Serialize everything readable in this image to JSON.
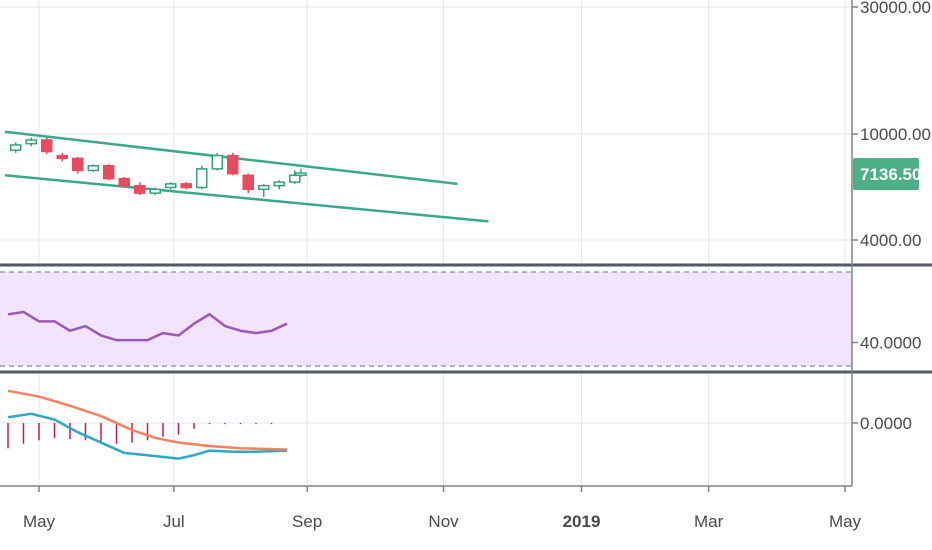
{
  "chart_data": {
    "type": "candlestick",
    "panes": {
      "price": {
        "scale": "log",
        "y_ticks": [
          "30000.00",
          "10000.00",
          "4000.00"
        ],
        "last_price": "7136.50",
        "last_price_color": "#4caf87",
        "up_color": "#ffffff",
        "up_border": "#3aa17e",
        "down_color": "#e84a5f",
        "trendline_color": "#3aa88c",
        "candles": [
          {
            "t": 0.5,
            "o": 8700,
            "h": 9300,
            "l": 8500,
            "c": 9100
          },
          {
            "t": 1.5,
            "o": 9200,
            "h": 9700,
            "l": 9000,
            "c": 9500
          },
          {
            "t": 2.5,
            "o": 9500,
            "h": 9700,
            "l": 8400,
            "c": 8600
          },
          {
            "t": 3.5,
            "o": 8300,
            "h": 8500,
            "l": 7900,
            "c": 8100
          },
          {
            "t": 4.5,
            "o": 8100,
            "h": 8200,
            "l": 7100,
            "c": 7300
          },
          {
            "t": 5.5,
            "o": 7300,
            "h": 7700,
            "l": 7200,
            "c": 7600
          },
          {
            "t": 6.5,
            "o": 7600,
            "h": 7700,
            "l": 6700,
            "c": 6800
          },
          {
            "t": 7.5,
            "o": 6800,
            "h": 6900,
            "l": 6300,
            "c": 6400
          },
          {
            "t": 8.5,
            "o": 6400,
            "h": 6600,
            "l": 5900,
            "c": 6000
          },
          {
            "t": 9.5,
            "o": 6000,
            "h": 6300,
            "l": 5900,
            "c": 6200
          },
          {
            "t": 10.5,
            "o": 6300,
            "h": 6600,
            "l": 6200,
            "c": 6500
          },
          {
            "t": 11.5,
            "o": 6500,
            "h": 6600,
            "l": 6200,
            "c": 6300
          },
          {
            "t": 12.5,
            "o": 6300,
            "h": 7600,
            "l": 6200,
            "c": 7400
          },
          {
            "t": 13.5,
            "o": 7400,
            "h": 8500,
            "l": 7300,
            "c": 8300
          },
          {
            "t": 14.5,
            "o": 8300,
            "h": 8500,
            "l": 7000,
            "c": 7100
          },
          {
            "t": 15.5,
            "o": 7000,
            "h": 7100,
            "l": 6000,
            "c": 6200
          },
          {
            "t": 16.5,
            "o": 6200,
            "h": 6500,
            "l": 5800,
            "c": 6400
          },
          {
            "t": 17.5,
            "o": 6400,
            "h": 6700,
            "l": 6200,
            "c": 6600
          },
          {
            "t": 18.5,
            "o": 6600,
            "h": 7300,
            "l": 6500,
            "c": 7000
          },
          {
            "t": 18.9,
            "o": 7000,
            "h": 7400,
            "l": 6900,
            "c": 7136.5
          }
        ],
        "trendlines": [
          {
            "t1": -0.2,
            "v1": 10200,
            "t2": 29,
            "v2": 6500
          },
          {
            "t1": -0.2,
            "v1": 7000,
            "t2": 31,
            "v2": 4700
          }
        ]
      },
      "rsi": {
        "y_tick": "40.0000",
        "band_upper": 70,
        "band_lower": 30,
        "band_color": "#f3e3ff",
        "line_color": "#9b59b6",
        "values": [
          {
            "t": 0,
            "v": 52
          },
          {
            "t": 1,
            "v": 53
          },
          {
            "t": 2,
            "v": 49
          },
          {
            "t": 3,
            "v": 49
          },
          {
            "t": 4,
            "v": 45
          },
          {
            "t": 5,
            "v": 47
          },
          {
            "t": 6,
            "v": 43
          },
          {
            "t": 7,
            "v": 41
          },
          {
            "t": 8,
            "v": 41
          },
          {
            "t": 9,
            "v": 41
          },
          {
            "t": 10,
            "v": 44
          },
          {
            "t": 11,
            "v": 43
          },
          {
            "t": 12,
            "v": 48
          },
          {
            "t": 13,
            "v": 52
          },
          {
            "t": 14,
            "v": 47
          },
          {
            "t": 15,
            "v": 45
          },
          {
            "t": 16,
            "v": 44
          },
          {
            "t": 17,
            "v": 45
          },
          {
            "t": 18,
            "v": 48
          }
        ]
      },
      "macd": {
        "y_tick": "0.0000",
        "macd_color": "#2ea8c3",
        "signal_color": "#f4825e",
        "hist_color": "#c2185b",
        "macd_line": [
          {
            "t": 0,
            "v": 5
          },
          {
            "t": 1.5,
            "v": 8
          },
          {
            "t": 3,
            "v": 3
          },
          {
            "t": 4.5,
            "v": -8
          },
          {
            "t": 6,
            "v": -17
          },
          {
            "t": 7.5,
            "v": -26
          },
          {
            "t": 9,
            "v": -28
          },
          {
            "t": 11,
            "v": -31
          },
          {
            "t": 12,
            "v": -28
          },
          {
            "t": 13,
            "v": -24
          },
          {
            "t": 14.5,
            "v": -25
          },
          {
            "t": 16,
            "v": -25
          },
          {
            "t": 18,
            "v": -24
          }
        ],
        "signal_line": [
          {
            "t": 0,
            "v": 28
          },
          {
            "t": 2,
            "v": 23
          },
          {
            "t": 4,
            "v": 15
          },
          {
            "t": 6,
            "v": 6
          },
          {
            "t": 8,
            "v": -6
          },
          {
            "t": 9.5,
            "v": -13
          },
          {
            "t": 11,
            "v": -17
          },
          {
            "t": 13,
            "v": -20
          },
          {
            "t": 15,
            "v": -22
          },
          {
            "t": 18,
            "v": -23
          }
        ],
        "histogram": [
          {
            "t": 0,
            "v": -22
          },
          {
            "t": 1,
            "v": -18
          },
          {
            "t": 2,
            "v": -15
          },
          {
            "t": 3,
            "v": -13
          },
          {
            "t": 4,
            "v": -14
          },
          {
            "t": 5,
            "v": -15
          },
          {
            "t": 6,
            "v": -17
          },
          {
            "t": 7,
            "v": -18
          },
          {
            "t": 8,
            "v": -17
          },
          {
            "t": 9,
            "v": -15
          },
          {
            "t": 10,
            "v": -12
          },
          {
            "t": 11,
            "v": -10
          },
          {
            "t": 12,
            "v": -5
          },
          {
            "t": 13,
            "v": -1
          },
          {
            "t": 14,
            "v": -1
          },
          {
            "t": 15,
            "v": -1
          },
          {
            "t": 16,
            "v": -1
          },
          {
            "t": 17,
            "v": -1
          }
        ]
      }
    },
    "x_ticks": [
      {
        "label": "May",
        "t": 2
      },
      {
        "label": "Jul",
        "t": 10.7
      },
      {
        "label": "Sep",
        "t": 19.3
      },
      {
        "label": "Nov",
        "t": 28.1
      },
      {
        "label": "2019",
        "t": 37,
        "bold": true
      },
      {
        "label": "Mar",
        "t": 45.2
      },
      {
        "label": "May",
        "t": 54
      }
    ]
  }
}
